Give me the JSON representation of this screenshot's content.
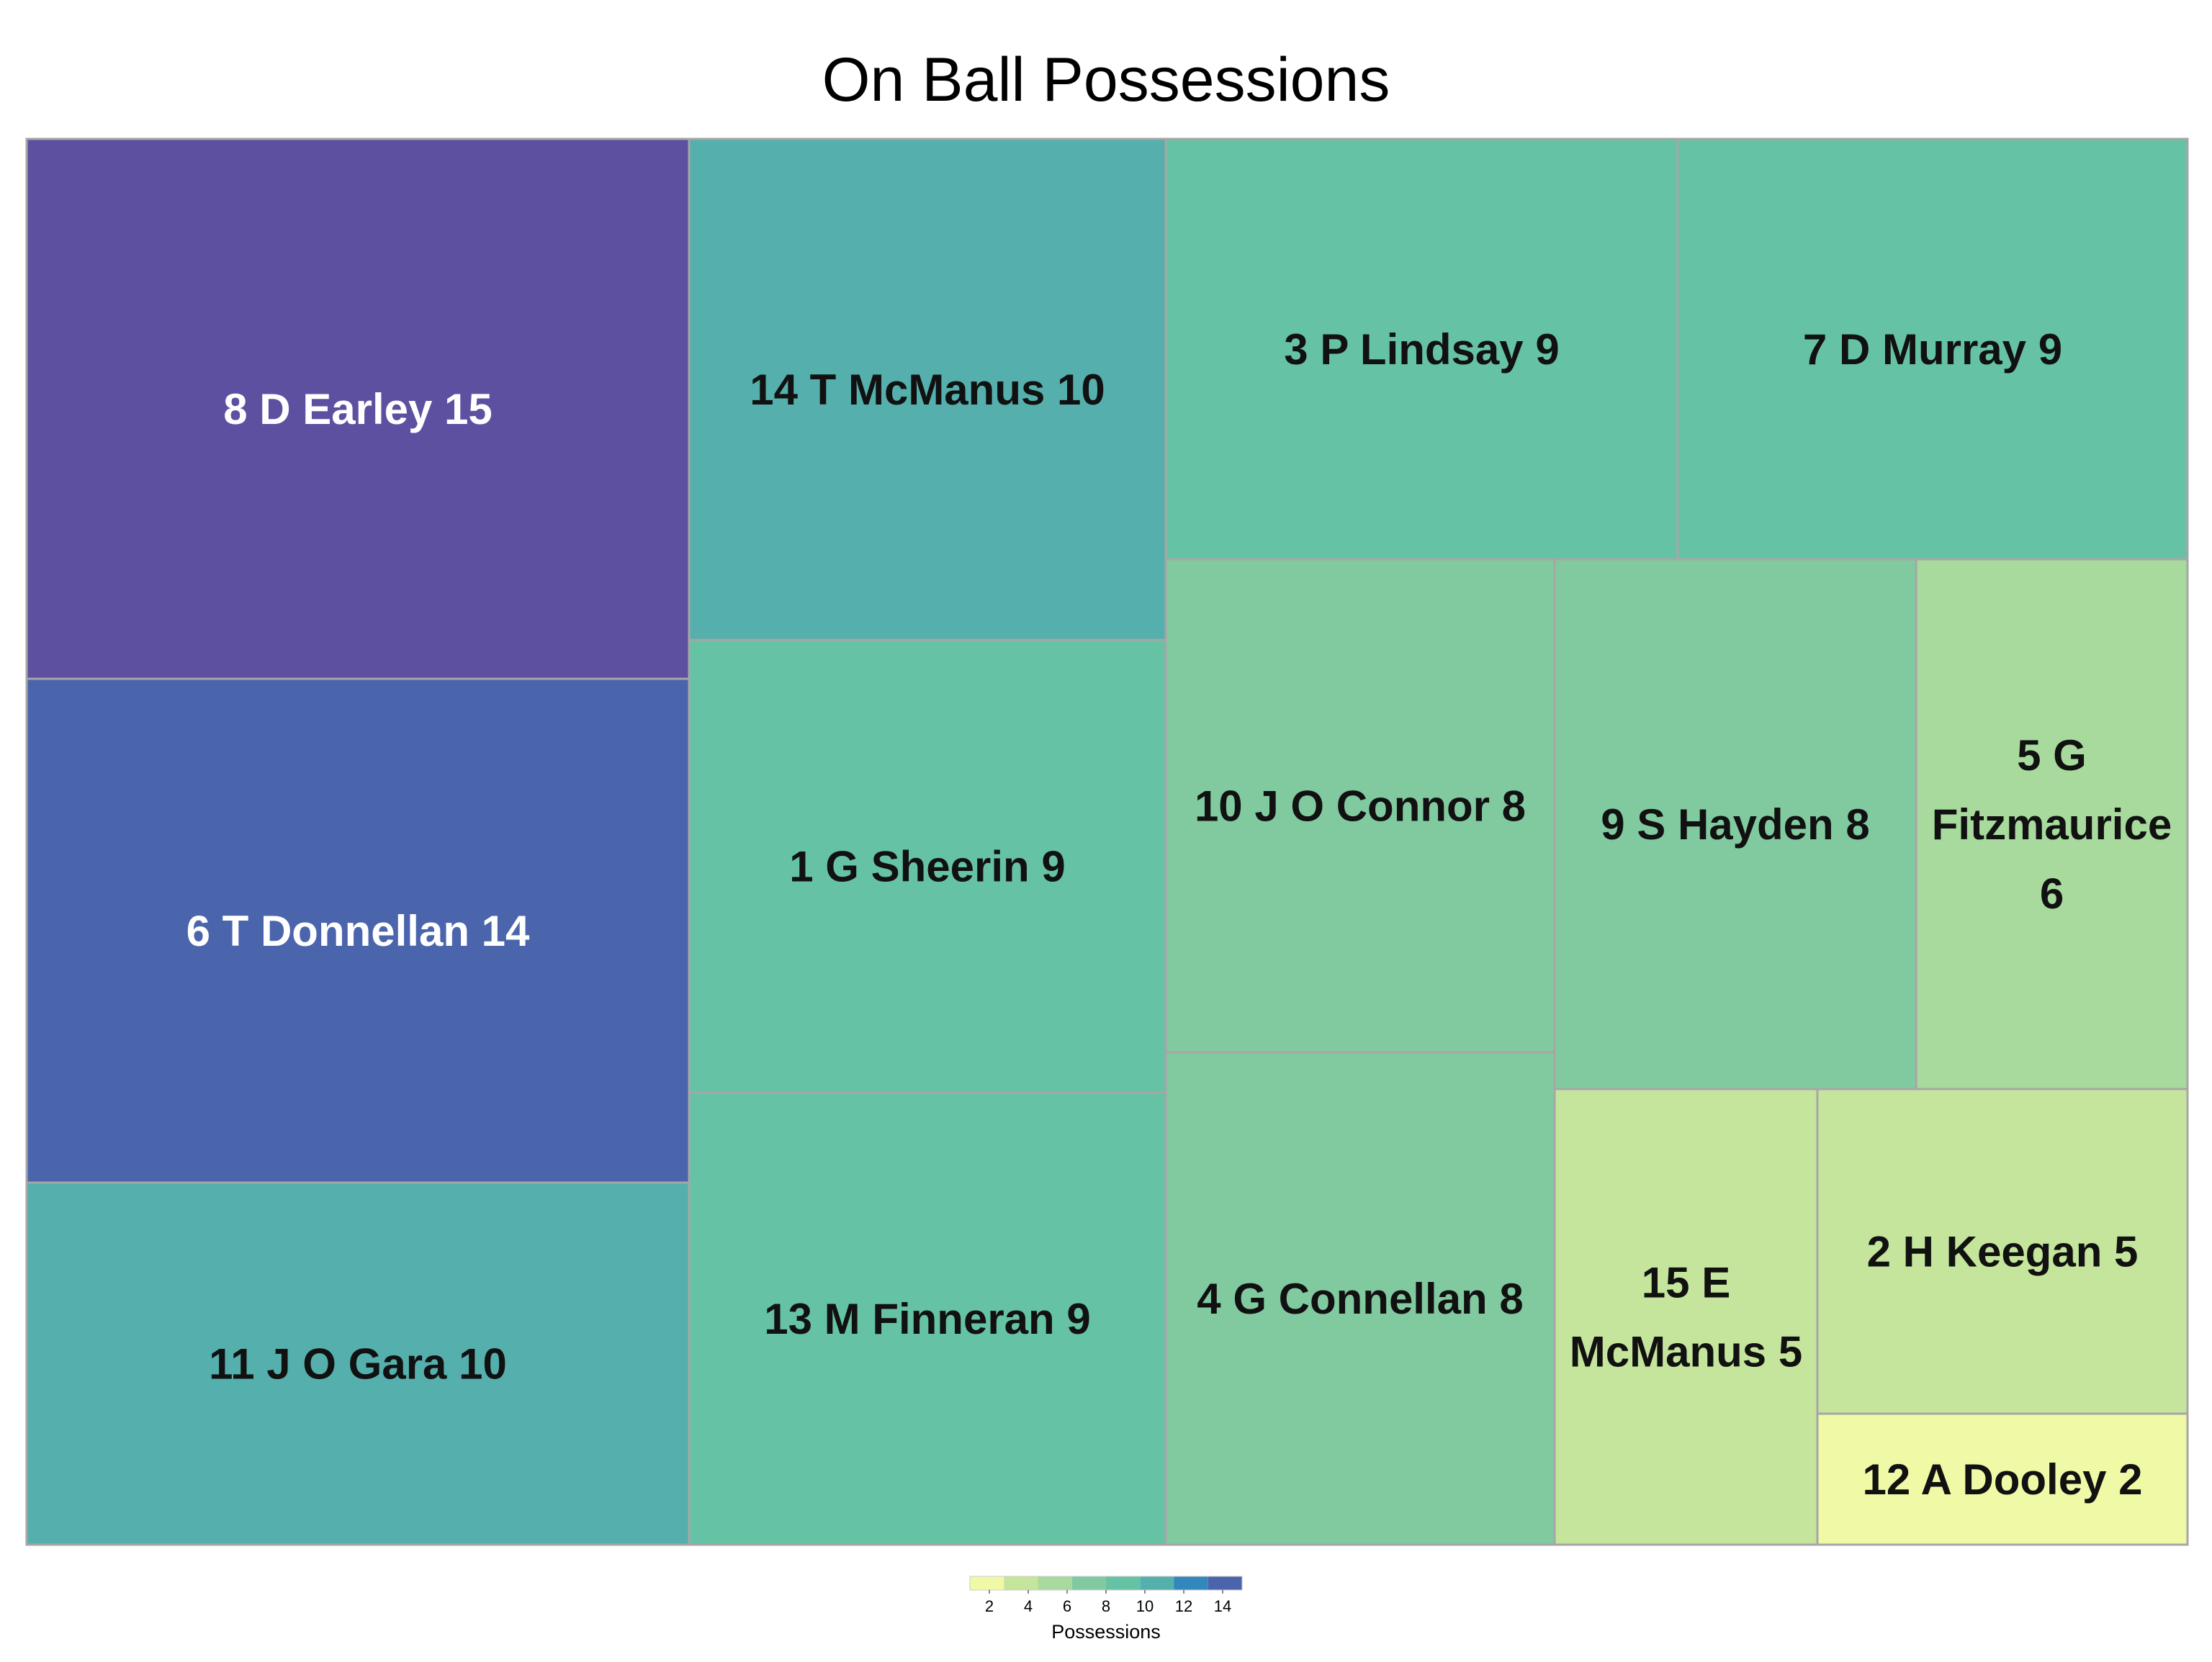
{
  "chart_data": {
    "type": "treemap",
    "title": "On Ball Possessions",
    "value_name": "Possessions",
    "tiles": [
      {
        "label_lines": [
          "8 D Earley 15"
        ],
        "value": 15,
        "color": "#5e50a1"
      },
      {
        "label_lines": [
          "6 T Donnellan 14"
        ],
        "value": 14,
        "color": "#4b65ad"
      },
      {
        "label_lines": [
          "11 J O Gara 10"
        ],
        "value": 10,
        "color": "#55afad"
      },
      {
        "label_lines": [
          "14 T McManus 10"
        ],
        "value": 10,
        "color": "#55afad"
      },
      {
        "label_lines": [
          "1 G Sheerin 9"
        ],
        "value": 9,
        "color": "#66c2a5"
      },
      {
        "label_lines": [
          "13 M Finneran 9"
        ],
        "value": 9,
        "color": "#66c2a5"
      },
      {
        "label_lines": [
          "3 P Lindsay 9"
        ],
        "value": 9,
        "color": "#66c2a5"
      },
      {
        "label_lines": [
          "7 D Murray 9"
        ],
        "value": 9,
        "color": "#66c2a5"
      },
      {
        "label_lines": [
          "10 J O Connor 8"
        ],
        "value": 8,
        "color": "#81caa0"
      },
      {
        "label_lines": [
          "4 G Connellan 8"
        ],
        "value": 8,
        "color": "#81caa0"
      },
      {
        "label_lines": [
          "9 S Hayden 8"
        ],
        "value": 8,
        "color": "#81caa0"
      },
      {
        "label_lines": [
          "5 G",
          "Fitzmaurice",
          "6"
        ],
        "value": 6,
        "color": "#a7da9c"
      },
      {
        "label_lines": [
          "15 E",
          "McManus 5"
        ],
        "value": 5,
        "color": "#c4e59b"
      },
      {
        "label_lines": [
          "2 H Keegan 5"
        ],
        "value": 5,
        "color": "#c4e59b"
      },
      {
        "label_lines": [
          "12 A Dooley 2"
        ],
        "value": 2,
        "color": "#f0f9a6"
      }
    ],
    "legend": {
      "title": "Possessions",
      "ticks": [
        "2",
        "4",
        "6",
        "8",
        "10",
        "12",
        "14"
      ],
      "colors": [
        "#f0f9a6",
        "#c4e59b",
        "#a7da9c",
        "#81caa0",
        "#66c2a5",
        "#55afad",
        "#3288bd",
        "#4b65ad"
      ]
    }
  }
}
